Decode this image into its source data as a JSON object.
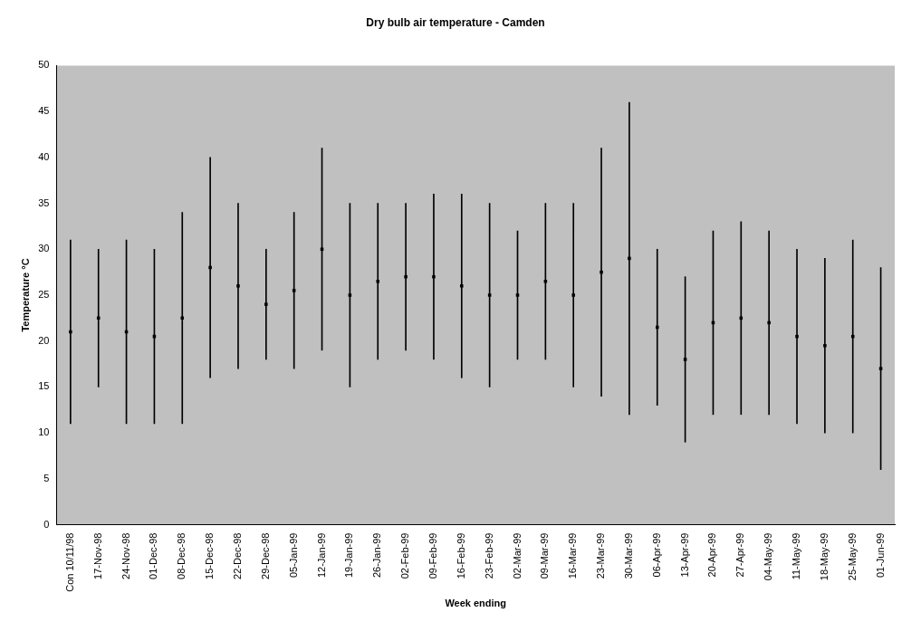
{
  "chart_data": {
    "type": "bar",
    "title": "Dry bulb air temperature - Camden",
    "xlabel": "Week ending",
    "ylabel": "Temperature °C",
    "categories": [
      "Con 10/11/98",
      "17-Nov-98",
      "24-Nov-98",
      "01-Dec-98",
      "08-Dec-98",
      "15-Dec-98",
      "22-Dec-98",
      "29-Dec-98",
      "05-Jan-99",
      "12-Jan-99",
      "19-Jan-99",
      "26-Jan-99",
      "02-Feb-99",
      "09-Feb-99",
      "16-Feb-99",
      "23-Feb-99",
      "02-Mar-99",
      "09-Mar-99",
      "16-Mar-99",
      "23-Mar-99",
      "30-Mar-99",
      "06-Apr-99",
      "13-Apr-99",
      "20-Apr-99",
      "27-Apr-99",
      "04-May-99",
      "11-May-99",
      "18-May-99",
      "25-May-99",
      "01-Jun-99"
    ],
    "series": [
      {
        "color": "#000000",
        "base": [
          11,
          15,
          11,
          11,
          11,
          16,
          17,
          18,
          17,
          19,
          15,
          18,
          19,
          18,
          16,
          15,
          18,
          18,
          15,
          14,
          12,
          13,
          9,
          12,
          12,
          12,
          11,
          10,
          10,
          6
        ],
        "values": [
          20,
          15,
          20,
          19,
          23,
          24,
          18,
          12,
          17,
          22,
          20,
          17,
          16,
          18,
          20,
          20,
          14,
          17,
          20,
          27,
          34,
          17,
          18,
          20,
          21,
          20,
          19,
          19,
          21,
          22
        ]
      },
      {
        "type": "scatter",
        "color": "#000000",
        "x": [
          "Con 10/11/98",
          "17-Nov-98",
          "24-Nov-98",
          "01-Dec-98",
          "08-Dec-98",
          "15-Dec-98",
          "22-Dec-98",
          "29-Dec-98",
          "05-Jan-99",
          "12-Jan-99",
          "19-Jan-99",
          "26-Jan-99",
          "02-Feb-99",
          "09-Feb-99",
          "16-Feb-99",
          "23-Feb-99",
          "02-Mar-99",
          "09-Mar-99",
          "16-Mar-99",
          "23-Mar-99",
          "30-Mar-99",
          "06-Apr-99",
          "13-Apr-99",
          "20-Apr-99",
          "27-Apr-99",
          "04-May-99",
          "11-May-99",
          "18-May-99",
          "25-May-99",
          "01-Jun-99"
        ],
        "values": [
          21,
          22.5,
          21,
          20.5,
          22.5,
          28,
          26,
          24,
          25.5,
          30,
          25,
          26.5,
          27,
          27,
          26,
          25,
          25,
          26.5,
          25,
          27.5,
          29,
          21.5,
          18,
          22,
          22.5,
          22,
          20.5,
          19.5,
          20.5,
          17
        ]
      }
    ],
    "ylim": [
      0,
      50
    ],
    "yticks": [
      0,
      5,
      10,
      15,
      20,
      25,
      30,
      35,
      40,
      45,
      50
    ],
    "grid": false,
    "legend": false,
    "marker": "square"
  }
}
